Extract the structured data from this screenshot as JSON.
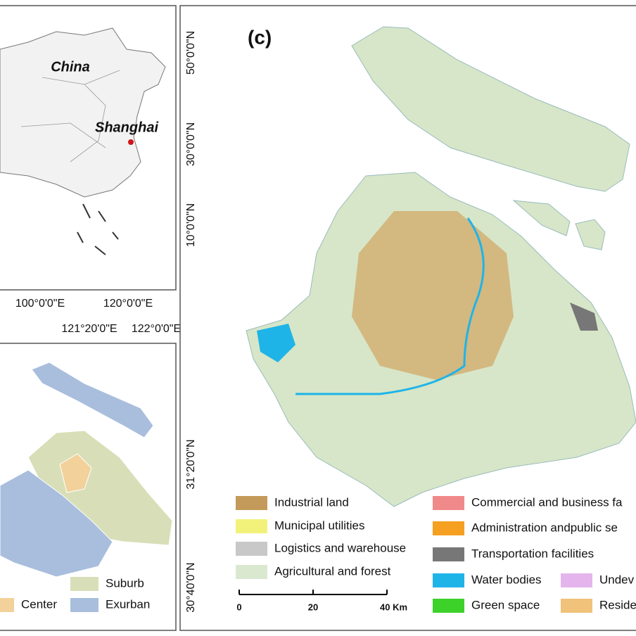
{
  "panel_a": {
    "labels": [
      "China",
      "Shanghai"
    ],
    "lat_ticks": [
      "50°0'0\"N",
      "30°0'0\"N",
      "10°0'0\"N"
    ],
    "lon_ticks": [
      "100°0'0\"E",
      "120°0'0\"E"
    ]
  },
  "panel_b": {
    "lon_ticks": [
      "121°20'0\"E",
      "122°0'0\"E"
    ],
    "lat_ticks": [
      "31°20'0\"N",
      "30°40'0\"N"
    ],
    "legend": [
      {
        "label": "Suburb",
        "color": "#d8dfb8"
      },
      {
        "label": "Center",
        "color": "#f3d19a"
      },
      {
        "label": "Exurban",
        "color": "#a9bedd"
      }
    ]
  },
  "panel_c": {
    "label": "(c)",
    "legend": [
      {
        "label": "Industrial land",
        "color": "#c49a5a"
      },
      {
        "label": "Municipal utilities",
        "color": "#f2f27a"
      },
      {
        "label": "Logistics and warehouse",
        "color": "#c8c8c8"
      },
      {
        "label": "Agricultural and forest",
        "color": "#dbe8d0"
      },
      {
        "label": "Commercial and business fa",
        "color": "#f08a8a"
      },
      {
        "label": "Administration andpublic se",
        "color": "#f5a020"
      },
      {
        "label": "Transportation facilities",
        "color": "#777777"
      },
      {
        "label": "Water bodies",
        "color": "#1eb4e8"
      },
      {
        "label": "Green space",
        "color": "#3cd22a"
      },
      {
        "label": "Undev",
        "color": "#e4b4ec"
      },
      {
        "label": "Reside",
        "color": "#f0c27a"
      }
    ],
    "scale": [
      "0",
      "20",
      "40 Km"
    ]
  }
}
